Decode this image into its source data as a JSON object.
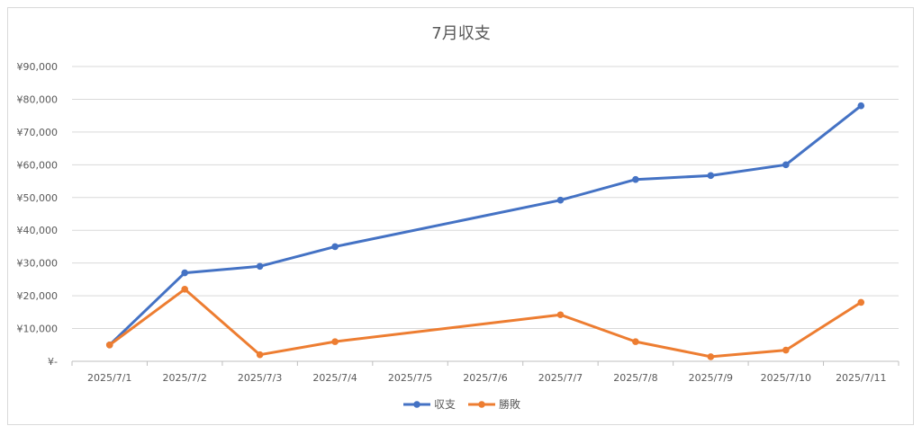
{
  "chart_data": {
    "type": "line",
    "title": "7月収支",
    "categories": [
      "2025/7/1",
      "2025/7/2",
      "2025/7/3",
      "2025/7/4",
      "2025/7/5",
      "2025/7/6",
      "2025/7/7",
      "2025/7/8",
      "2025/7/9",
      "2025/7/10",
      "2025/7/11"
    ],
    "ytick_labels": [
      "¥-",
      "¥10,000",
      "¥20,000",
      "¥30,000",
      "¥40,000",
      "¥50,000",
      "¥60,000",
      "¥70,000",
      "¥80,000",
      "¥90,000"
    ],
    "ylim": [
      0,
      90000
    ],
    "grid": true,
    "legend_position": "bottom",
    "series": [
      {
        "name": "収支",
        "color": "#4472c4",
        "values": [
          5000,
          27000,
          29000,
          35000,
          null,
          null,
          49200,
          55500,
          56700,
          60000,
          78000
        ]
      },
      {
        "name": "勝敗",
        "color": "#ed7d31",
        "values": [
          5000,
          22000,
          2000,
          6000,
          null,
          null,
          14200,
          6000,
          1400,
          3400,
          18000
        ]
      }
    ]
  }
}
